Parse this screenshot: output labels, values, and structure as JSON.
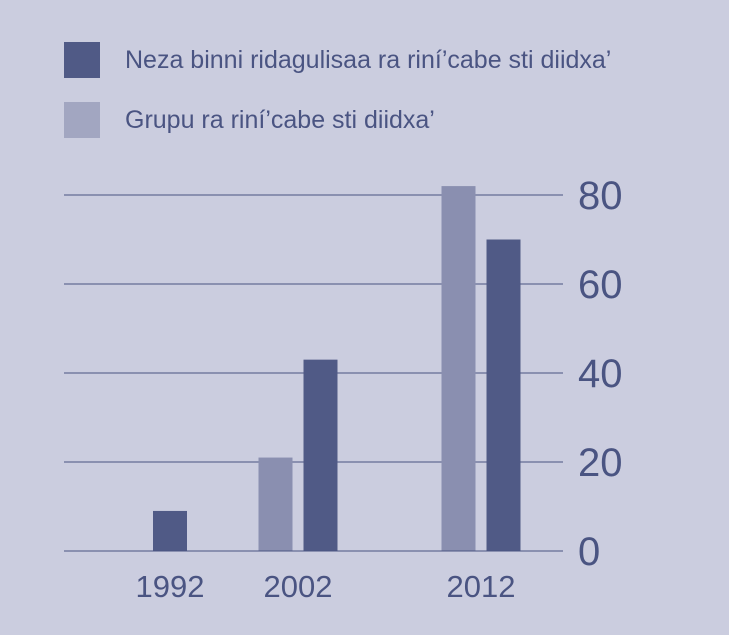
{
  "colors": {
    "background": "#cbcddf",
    "series_dark": "#505a86",
    "series_light": "#8a8fb0",
    "text": "#4a5482",
    "grid": "#4a5482"
  },
  "legend": [
    {
      "label": "Neza binni ridagulisaa ra riní’cabe sti diidxa’",
      "color": "#505a86"
    },
    {
      "label": "Grupu ra riní’cabe sti diidxa’",
      "color": "#a2a6c1"
    }
  ],
  "chart_data": {
    "type": "bar",
    "title": "",
    "xlabel": "",
    "ylabel": "",
    "categories": [
      "1992",
      "2002",
      "2012"
    ],
    "series": [
      {
        "name": "Grupu ra riní’cabe sti diidxa’",
        "values": [
          0,
          21,
          82
        ],
        "color": "#8a8fb0"
      },
      {
        "name": "Neza binni ridagulisaa ra riní’cabe sti diidxa’",
        "values": [
          9,
          43,
          70
        ],
        "color": "#505a86"
      }
    ],
    "ylim": [
      0,
      80
    ],
    "yticks": [
      0,
      20,
      40,
      60,
      80
    ],
    "y_axis_position": "right",
    "grid": true,
    "legend_position": "top-left"
  }
}
